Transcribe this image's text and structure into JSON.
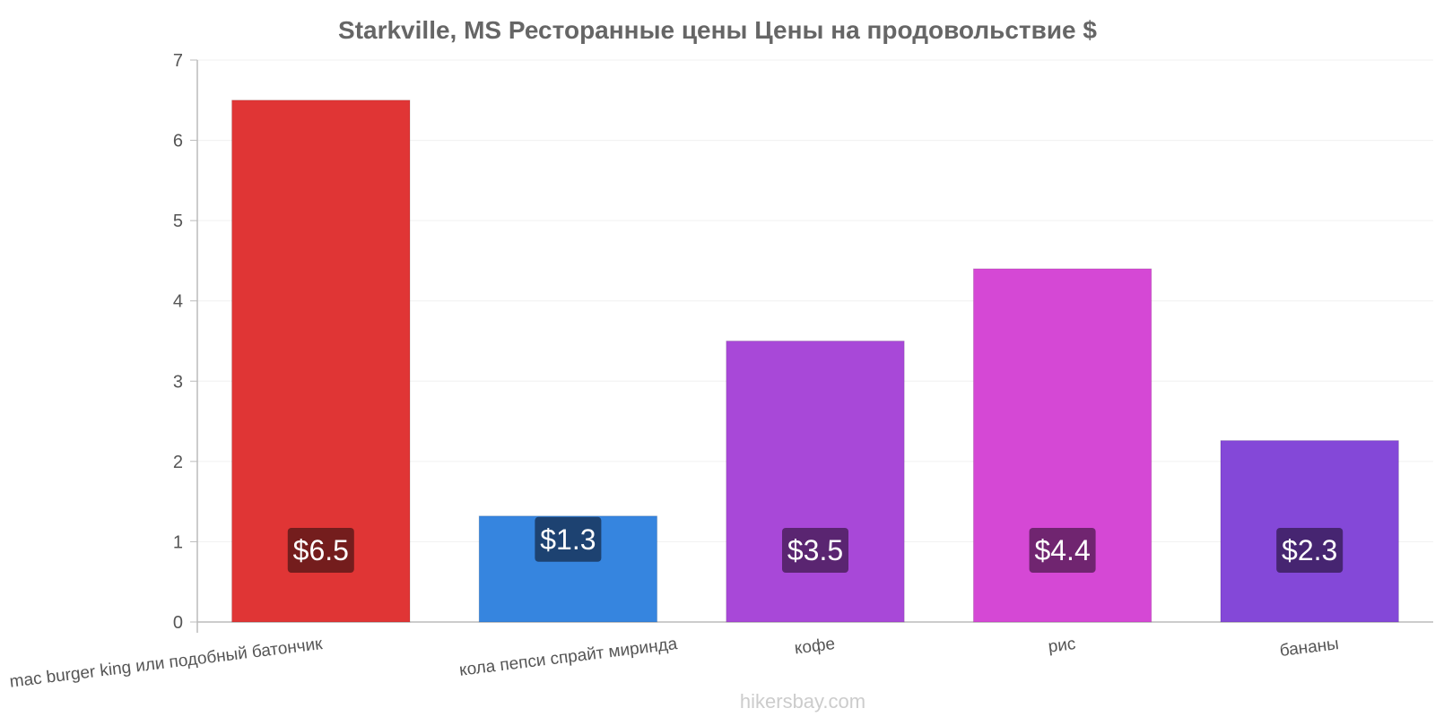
{
  "chart_data": {
    "type": "bar",
    "title": "Starkville, MS Ресторанные цены Цены на продовольствие $",
    "xlabel": "",
    "ylabel": "",
    "ylim": [
      0,
      7
    ],
    "yticks": [
      "0",
      "1",
      "2",
      "3",
      "4",
      "5",
      "6",
      "7"
    ],
    "grid": true,
    "categories": [
      "mac burger king или подобный батончик",
      "кола пепси спрайт миринда",
      "кофе",
      "рис",
      "бананы"
    ],
    "values": [
      6.5,
      1.32,
      3.5,
      4.4,
      2.26
    ],
    "value_labels": [
      "$6.5",
      "$1.3",
      "$3.5",
      "$4.4",
      "$2.3"
    ],
    "bar_colors": [
      "#e03535",
      "#3685df",
      "#a848d8",
      "#d548d5",
      "#8448d8"
    ],
    "label_box_colors": [
      "#6e1c1c",
      "#1c3e6a",
      "#55246c",
      "#6a246a",
      "#42246c"
    ]
  },
  "watermark": "hikersbay.com"
}
